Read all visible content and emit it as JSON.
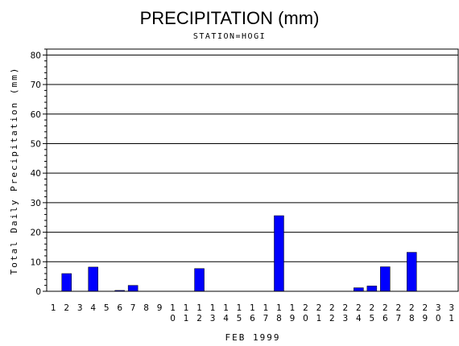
{
  "chart_data": {
    "type": "bar",
    "title": "PRECIPITATION (mm)",
    "subtitle": "STATION=HOGI",
    "xlabel": "FEB 1999",
    "ylabel": "Total Daily Precipitation (mm)",
    "ylim": [
      0,
      82
    ],
    "yticks": [
      0,
      10,
      20,
      30,
      40,
      50,
      60,
      70,
      80
    ],
    "grid": true,
    "categories": [
      "1",
      "2",
      "3",
      "4",
      "5",
      "6",
      "7",
      "8",
      "9",
      "10",
      "11",
      "12",
      "13",
      "14",
      "15",
      "16",
      "17",
      "18",
      "19",
      "20",
      "21",
      "22",
      "23",
      "24",
      "25",
      "26",
      "27",
      "28",
      "29",
      "30",
      "31"
    ],
    "values": [
      0,
      6,
      0,
      8.2,
      0,
      0.3,
      2,
      0,
      0,
      0,
      0,
      7.7,
      0,
      0,
      0,
      0,
      0,
      25.6,
      0,
      0,
      0,
      0,
      0,
      1.2,
      1.8,
      8.3,
      0,
      13.2,
      0,
      0,
      0
    ],
    "bar_color": "#0000ff"
  }
}
